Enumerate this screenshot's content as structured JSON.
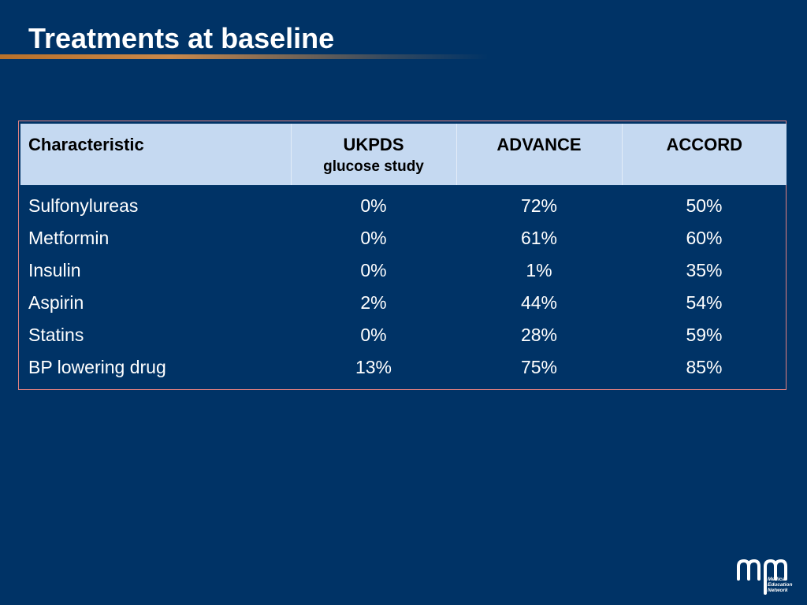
{
  "slide": {
    "title": "Treatments at baseline"
  },
  "table": {
    "columns": [
      {
        "label": "Characteristic",
        "sublabel": ""
      },
      {
        "label": "UKPDS",
        "sublabel": "glucose study"
      },
      {
        "label": "ADVANCE",
        "sublabel": ""
      },
      {
        "label": "ACCORD",
        "sublabel": ""
      }
    ],
    "rows": [
      {
        "label": "Sulfonylureas",
        "values": [
          "0%",
          "72%",
          "50%"
        ]
      },
      {
        "label": "Metformin",
        "values": [
          "0%",
          "61%",
          "60%"
        ]
      },
      {
        "label": "Insulin",
        "values": [
          "0%",
          "1%",
          "35%"
        ]
      },
      {
        "label": "Aspirin",
        "values": [
          "2%",
          "44%",
          "54%"
        ]
      },
      {
        "label": "Statins",
        "values": [
          "0%",
          "28%",
          "59%"
        ]
      },
      {
        "label": "BP lowering drug",
        "values": [
          "13%",
          "75%",
          "85%"
        ]
      }
    ]
  },
  "logo": {
    "lines": [
      "Medical",
      "Education",
      "Network"
    ]
  },
  "colors": {
    "background": "#003366",
    "header_fill": "#c5d9f1",
    "frame_border": "#e08080",
    "title_rule": "#c9884a"
  }
}
